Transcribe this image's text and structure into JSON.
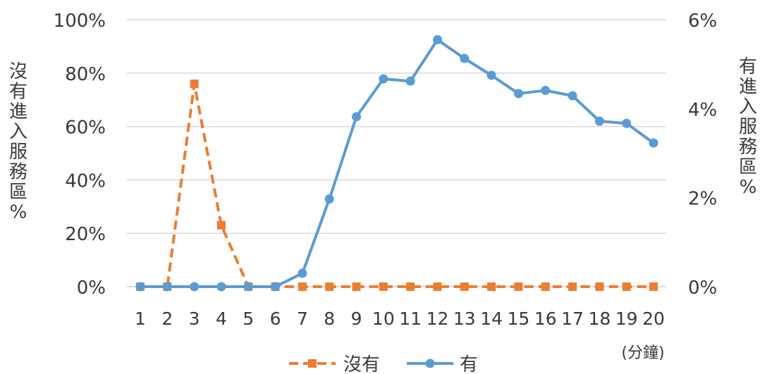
{
  "chart_data": {
    "type": "line",
    "x": [
      "1",
      "2",
      "3",
      "4",
      "5",
      "6",
      "7",
      "8",
      "9",
      "10",
      "11",
      "12",
      "13",
      "14",
      "15",
      "16",
      "17",
      "18",
      "19",
      "20"
    ],
    "x_unit_label": "(分鐘)",
    "y_left_label": "沒有進入服務區%",
    "y_right_label": "有進入服務區%",
    "y_left_ticks": [
      "0%",
      "20%",
      "40%",
      "60%",
      "80%",
      "100%"
    ],
    "y_right_ticks": [
      "0%",
      "2%",
      "4%",
      "6%"
    ],
    "y_left_range": [
      0,
      100
    ],
    "y_right_range": [
      0,
      6
    ],
    "grid": true,
    "legend_position": "bottom",
    "series": [
      {
        "name": "沒有",
        "axis": "left",
        "style": "dashed",
        "marker": "square",
        "color": "#ED7D31",
        "values": [
          0,
          0,
          76,
          23,
          0,
          0,
          0,
          0,
          0,
          0,
          0,
          0,
          0,
          0,
          0,
          0,
          0,
          0,
          0,
          0
        ]
      },
      {
        "name": "有",
        "axis": "right",
        "style": "solid",
        "marker": "circle",
        "color": "#5B9BD5",
        "values": [
          0,
          0,
          0,
          0,
          0,
          0,
          0.3,
          1.97,
          3.82,
          4.67,
          4.62,
          5.55,
          5.13,
          4.75,
          4.34,
          4.41,
          4.29,
          3.72,
          3.67,
          3.23
        ]
      }
    ]
  }
}
